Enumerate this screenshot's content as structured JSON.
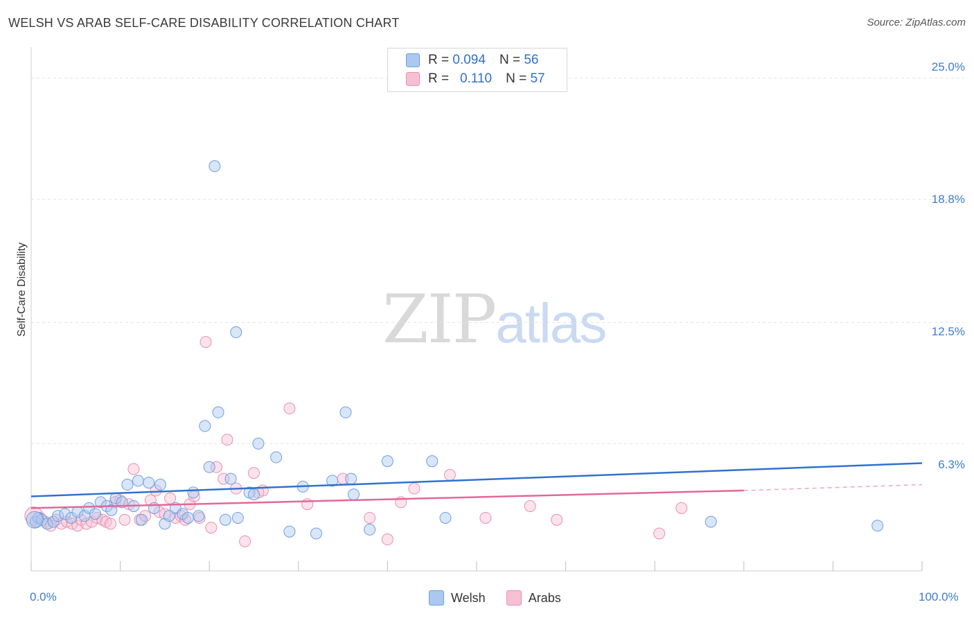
{
  "header": {
    "title": "WELSH VS ARAB SELF-CARE DISABILITY CORRELATION CHART",
    "source": "Source: ZipAtlas.com"
  },
  "watermark": {
    "zip": "ZIP",
    "atlas": "atlas"
  },
  "legend": {
    "rows": [
      {
        "r_label": "R =",
        "r_value": "0.094",
        "n_label": "N =",
        "n_value": "56"
      },
      {
        "r_label": "R =",
        "r_value": "0.110",
        "n_label": "N =",
        "n_value": "57"
      }
    ]
  },
  "bottom_legend": {
    "welsh": "Welsh",
    "arabs": "Arabs"
  },
  "colors": {
    "welsh_fill": "#aac8f0",
    "welsh_stroke": "#6f9ee0",
    "welsh_line": "#2f72d0",
    "arabs_fill": "#f7c0d2",
    "arabs_stroke": "#e98fae",
    "arabs_line": "#e2679a",
    "tick_text": "#3d7bd1"
  },
  "chart_data": {
    "type": "scatter",
    "title": "WELSH VS ARAB SELF-CARE DISABILITY CORRELATION CHART",
    "xlabel": "",
    "ylabel": "Self-Care Disability",
    "xlim": [
      0,
      100
    ],
    "ylim": [
      0,
      26.2
    ],
    "x_tick_labels": [
      "0.0%",
      "100.0%"
    ],
    "y_ticks": [
      6.3,
      12.5,
      18.8,
      25.0
    ],
    "y_tick_labels": [
      "6.3%",
      "12.5%",
      "18.8%",
      "25.0%"
    ],
    "legend_position": "top-center",
    "series": [
      {
        "name": "Welsh",
        "R": 0.094,
        "N": 56,
        "trend": {
          "x": [
            0,
            100
          ],
          "y": [
            3.6,
            5.3
          ],
          "dashed_from": null
        },
        "points": [
          [
            0.5,
            2.3
          ],
          [
            0.8,
            2.5
          ],
          [
            1.2,
            2.4
          ],
          [
            1.8,
            2.2
          ],
          [
            2.5,
            2.3
          ],
          [
            3.0,
            2.6
          ],
          [
            3.8,
            2.7
          ],
          [
            4.5,
            2.5
          ],
          [
            5.2,
            2.8
          ],
          [
            6.0,
            2.6
          ],
          [
            6.5,
            3.0
          ],
          [
            7.2,
            2.7
          ],
          [
            7.8,
            3.3
          ],
          [
            8.5,
            3.1
          ],
          [
            9.0,
            2.9
          ],
          [
            9.5,
            3.5
          ],
          [
            10.2,
            3.3
          ],
          [
            10.8,
            4.2
          ],
          [
            11.5,
            3.1
          ],
          [
            12.0,
            4.4
          ],
          [
            12.4,
            2.4
          ],
          [
            13.2,
            4.3
          ],
          [
            13.8,
            3.0
          ],
          [
            14.5,
            4.2
          ],
          [
            15.0,
            2.2
          ],
          [
            15.5,
            2.6
          ],
          [
            16.2,
            3.0
          ],
          [
            17.0,
            2.7
          ],
          [
            17.6,
            2.5
          ],
          [
            18.2,
            3.8
          ],
          [
            18.8,
            2.6
          ],
          [
            19.5,
            7.2
          ],
          [
            20.0,
            5.1
          ],
          [
            21.0,
            7.9
          ],
          [
            21.8,
            2.4
          ],
          [
            22.4,
            4.5
          ],
          [
            23.2,
            2.5
          ],
          [
            24.5,
            3.8
          ],
          [
            25.0,
            3.7
          ],
          [
            25.5,
            6.3
          ],
          [
            27.5,
            5.6
          ],
          [
            29.0,
            1.8
          ],
          [
            30.5,
            4.1
          ],
          [
            32.0,
            1.7
          ],
          [
            33.8,
            4.4
          ],
          [
            35.3,
            7.9
          ],
          [
            35.9,
            4.5
          ],
          [
            36.2,
            3.7
          ],
          [
            38.0,
            1.9
          ],
          [
            40.0,
            5.4
          ],
          [
            45.0,
            5.4
          ],
          [
            46.5,
            2.5
          ],
          [
            76.3,
            2.3
          ],
          [
            95.0,
            2.1
          ],
          [
            20.6,
            20.5
          ],
          [
            23.0,
            12.0
          ]
        ]
      },
      {
        "name": "Arabs",
        "R": 0.11,
        "N": 57,
        "trend": {
          "x": [
            0,
            80,
            100
          ],
          "y": [
            3.0,
            3.9,
            4.2
          ],
          "dashed_from": 80
        },
        "points": [
          [
            0.5,
            2.3
          ],
          [
            1.0,
            2.5
          ],
          [
            1.6,
            2.3
          ],
          [
            2.2,
            2.1
          ],
          [
            2.8,
            2.4
          ],
          [
            3.4,
            2.2
          ],
          [
            4.0,
            2.3
          ],
          [
            4.6,
            2.2
          ],
          [
            5.2,
            2.1
          ],
          [
            5.6,
            2.4
          ],
          [
            6.2,
            2.2
          ],
          [
            6.8,
            2.3
          ],
          [
            7.4,
            2.5
          ],
          [
            8.0,
            2.4
          ],
          [
            8.4,
            2.3
          ],
          [
            8.9,
            2.2
          ],
          [
            9.4,
            3.3
          ],
          [
            10.0,
            3.4
          ],
          [
            10.5,
            2.4
          ],
          [
            11.0,
            3.2
          ],
          [
            11.5,
            5.0
          ],
          [
            12.2,
            2.4
          ],
          [
            12.8,
            2.6
          ],
          [
            13.4,
            3.4
          ],
          [
            14.0,
            3.9
          ],
          [
            14.4,
            2.8
          ],
          [
            15.0,
            2.7
          ],
          [
            15.6,
            3.5
          ],
          [
            16.2,
            2.5
          ],
          [
            16.8,
            2.6
          ],
          [
            17.3,
            2.4
          ],
          [
            17.8,
            3.2
          ],
          [
            18.3,
            3.6
          ],
          [
            18.9,
            2.5
          ],
          [
            19.6,
            11.5
          ],
          [
            20.2,
            2.0
          ],
          [
            20.8,
            5.1
          ],
          [
            21.6,
            4.5
          ],
          [
            22.0,
            6.5
          ],
          [
            23.0,
            4.0
          ],
          [
            24.0,
            1.3
          ],
          [
            25.0,
            4.8
          ],
          [
            26.0,
            3.9
          ],
          [
            29.0,
            8.1
          ],
          [
            31.0,
            3.2
          ],
          [
            35.0,
            4.5
          ],
          [
            38.0,
            2.5
          ],
          [
            40.0,
            1.4
          ],
          [
            41.5,
            3.3
          ],
          [
            43.0,
            4.0
          ],
          [
            47.0,
            4.7
          ],
          [
            51.0,
            2.5
          ],
          [
            56.0,
            3.1
          ],
          [
            59.0,
            2.4
          ],
          [
            70.5,
            1.7
          ],
          [
            73.0,
            3.0
          ],
          [
            25.5,
            3.8
          ]
        ]
      }
    ]
  }
}
